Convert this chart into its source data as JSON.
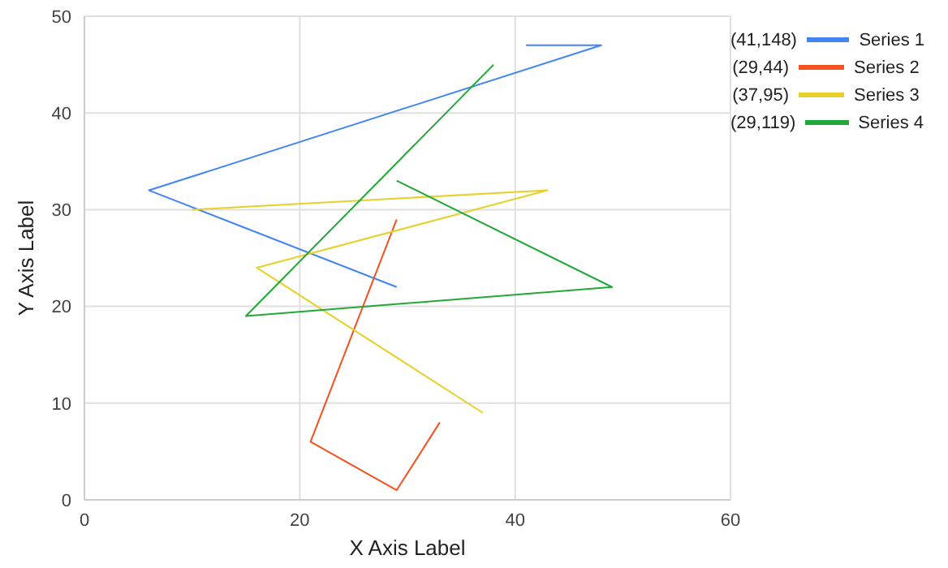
{
  "chart_data": {
    "type": "line",
    "xlabel": "X Axis Label",
    "ylabel": "Y Axis Label",
    "xlim": [
      0,
      60
    ],
    "xticks": [
      0,
      20,
      40,
      60
    ],
    "ylim": [
      0,
      50
    ],
    "yticks": [
      0,
      10,
      20,
      30,
      40,
      50
    ],
    "grid": true,
    "legend": "right",
    "marker": "none",
    "line_style": "solid",
    "annotations": [
      "(41,148)",
      "(29,44)",
      "(37,95)",
      "(29,119)"
    ],
    "series": [
      {
        "name": "Series 1",
        "color": "#4285f4",
        "x": [
          41,
          48,
          6,
          29
        ],
        "values": [
          47,
          47,
          32,
          22
        ]
      },
      {
        "name": "Series 2",
        "color": "#f4511e",
        "x": [
          29,
          21,
          29,
          33
        ],
        "values": [
          29,
          6,
          1,
          8
        ]
      },
      {
        "name": "Series 3",
        "color": "#e6d02a",
        "x": [
          10,
          43,
          16,
          37
        ],
        "values": [
          30,
          32,
          24,
          9
        ]
      },
      {
        "name": "Series 4",
        "color": "#22a839",
        "x": [
          29,
          49,
          15,
          38
        ],
        "values": [
          33,
          22,
          19,
          45
        ]
      }
    ]
  }
}
